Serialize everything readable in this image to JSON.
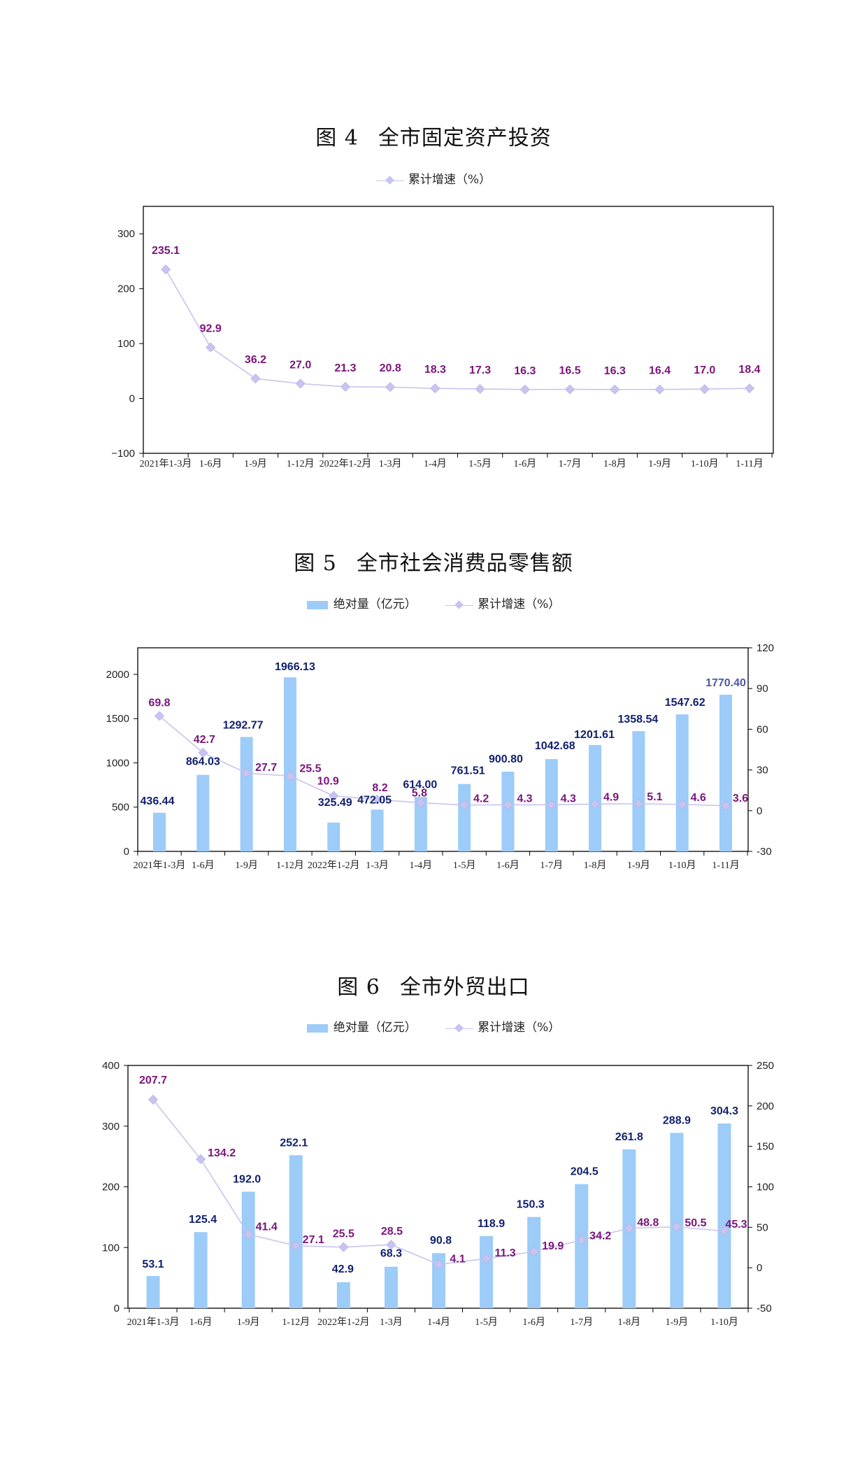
{
  "charts": [
    {
      "title_num": "图 4",
      "title_text": "全市固定资产投资",
      "legend_line": "累计增速（%）"
    },
    {
      "title_num": "图 5",
      "title_text": "全市社会消费品零售额",
      "legend_bar": "绝对量（亿元）",
      "legend_line": "累计增速（%）"
    },
    {
      "title_num": "图 6",
      "title_text": "全市外贸出口",
      "legend_bar": "绝对量（亿元）",
      "legend_line": "累计增速（%）"
    }
  ],
  "chart_data": [
    {
      "type": "line",
      "title": "图 4　全市固定资产投资",
      "categories": [
        "2021年1-3月",
        "1-6月",
        "1-9月",
        "1-12月",
        "2022年1-2月",
        "1-3月",
        "1-4月",
        "1-5月",
        "1-6月",
        "1-7月",
        "1-8月",
        "1-9月",
        "1-10月",
        "1-11月"
      ],
      "series": [
        {
          "name": "累计增速（%）",
          "values": [
            235.1,
            92.9,
            36.2,
            27.0,
            21.3,
            20.8,
            18.3,
            17.3,
            16.3,
            16.5,
            16.3,
            16.4,
            17.0,
            18.4
          ],
          "labels": [
            "235.1",
            "92.9",
            "36.2",
            "27.0",
            "21.3",
            "20.8",
            "18.3",
            "17.3",
            "16.3",
            "16.5",
            "16.3",
            "16.4",
            "17.0",
            "18.4"
          ]
        }
      ],
      "ylim": [
        -100,
        350
      ],
      "yticks": [
        -100,
        0,
        100,
        200,
        300
      ],
      "ytick_labels": [
        "−100",
        "0",
        "100",
        "200",
        "300"
      ],
      "legend": "top",
      "colors": {
        "line": "#c8c4ef",
        "line_label": "#7a157a"
      }
    },
    {
      "type": "bar",
      "title": "图 5　全市社会消费品零售额",
      "categories": [
        "2021年1-3月",
        "1-6月",
        "1-9月",
        "1-12月",
        "2022年1-2月",
        "1-3月",
        "1-4月",
        "1-5月",
        "1-6月",
        "1-7月",
        "1-8月",
        "1-9月",
        "1-10月",
        "1-11月"
      ],
      "series": [
        {
          "name": "绝对量（亿元）",
          "type": "bar",
          "axis": "left",
          "values": [
            436.44,
            864.03,
            1292.77,
            1966.13,
            325.49,
            472.05,
            614.0,
            761.51,
            900.8,
            1042.68,
            1201.61,
            1358.54,
            1547.62,
            1770.4
          ],
          "labels": [
            "436.44",
            "864.03",
            "1292.77",
            "1966.13",
            "325.49",
            "472.05",
            "614.00",
            "761.51",
            "900.80",
            "1042.68",
            "1201.61",
            "1358.54",
            "1547.62",
            "1770.40"
          ]
        },
        {
          "name": "累计增速（%）",
          "type": "line",
          "axis": "right",
          "values": [
            69.8,
            42.7,
            27.7,
            25.5,
            10.9,
            8.2,
            5.8,
            4.2,
            4.3,
            4.3,
            4.9,
            5.1,
            4.6,
            3.6
          ],
          "labels": [
            "69.8",
            "42.7",
            "27.7",
            "25.5",
            "10.9",
            "8.2",
            "5.8",
            "4.2",
            "4.3",
            "4.3",
            "4.9",
            "5.1",
            "4.6",
            "3.6"
          ]
        }
      ],
      "ylim": [
        0,
        2300
      ],
      "yticks": [
        0,
        500,
        1000,
        1500,
        2000
      ],
      "ytick_labels": [
        "0",
        "500",
        "1000",
        "1500",
        "2000"
      ],
      "y2lim": [
        -30,
        120
      ],
      "y2ticks": [
        -30,
        0,
        30,
        60,
        90,
        120
      ],
      "y2tick_labels": [
        "-30",
        "0",
        "30",
        "60",
        "90",
        "120"
      ],
      "legend": "top",
      "colors": {
        "bar": "#9cccf7",
        "line": "#c8c4ef",
        "bar_label": "#12216e",
        "line_label": "#7a157a",
        "last_bar_label": "#4c5aa3"
      }
    },
    {
      "type": "bar",
      "title": "图 6　全市外贸出口",
      "categories": [
        "2021年1-3月",
        "1-6月",
        "1-9月",
        "1-12月",
        "2022年1-2月",
        "1-3月",
        "1-4月",
        "1-5月",
        "1-6月",
        "1-7月",
        "1-8月",
        "1-9月",
        "1-10月"
      ],
      "series": [
        {
          "name": "绝对量（亿元）",
          "type": "bar",
          "axis": "left",
          "values": [
            53.1,
            125.4,
            192.0,
            252.1,
            42.9,
            68.3,
            90.8,
            118.9,
            150.3,
            204.5,
            261.8,
            288.9,
            304.3
          ],
          "labels": [
            "53.1",
            "125.4",
            "192.0",
            "252.1",
            "42.9",
            "68.3",
            "90.8",
            "118.9",
            "150.3",
            "204.5",
            "261.8",
            "288.9",
            "304.3"
          ]
        },
        {
          "name": "累计增速（%）",
          "type": "line",
          "axis": "right",
          "values": [
            207.7,
            134.2,
            41.4,
            27.1,
            25.5,
            28.5,
            4.1,
            11.3,
            19.9,
            34.2,
            48.8,
            50.5,
            45.3
          ],
          "labels": [
            "207.7",
            "134.2",
            "41.4",
            "27.1",
            "25.5",
            "28.5",
            "4.1",
            "11.3",
            "19.9",
            "34.2",
            "48.8",
            "50.5",
            "45.3"
          ]
        }
      ],
      "ylim": [
        0,
        400
      ],
      "yticks": [
        0,
        100,
        200,
        300,
        400
      ],
      "ytick_labels": [
        "0",
        "100",
        "200",
        "300",
        "400"
      ],
      "y2lim": [
        -50,
        250
      ],
      "y2ticks": [
        -50,
        0,
        50,
        100,
        150,
        200,
        250
      ],
      "y2tick_labels": [
        "-50",
        "0",
        "50",
        "100",
        "150",
        "200",
        "250"
      ],
      "legend": "top",
      "colors": {
        "bar": "#9cccf7",
        "line": "#c8c4ef",
        "bar_label": "#12216e",
        "line_label": "#7a157a"
      }
    }
  ]
}
